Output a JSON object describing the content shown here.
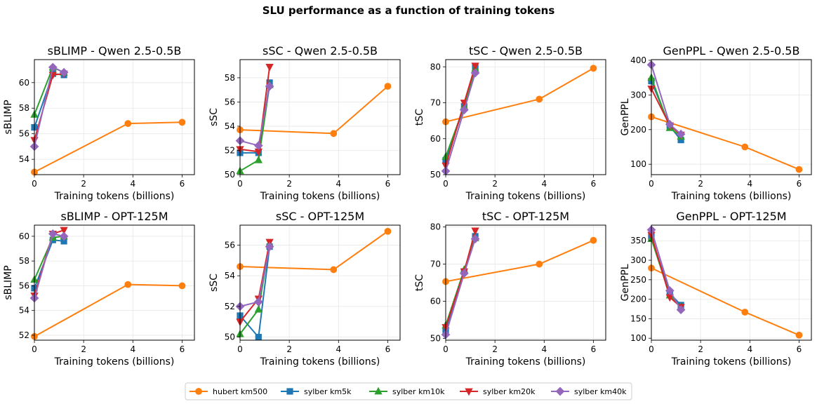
{
  "suptitle": "SLU performance as a function of training tokens",
  "colors": {
    "hubert km500": "#ff7f0e",
    "sylber km5k": "#1f77b4",
    "sylber km10k": "#2ca02c",
    "sylber km20k": "#d62728",
    "sylber km40k": "#9467bd"
  },
  "markers": {
    "hubert km500": "circle",
    "sylber km5k": "square",
    "sylber km10k": "triangle-up",
    "sylber km20k": "triangle-down",
    "sylber km40k": "diamond"
  },
  "legend": [
    "hubert km500",
    "sylber km5k",
    "sylber km10k",
    "sylber km20k",
    "sylber km40k"
  ],
  "chart_data": [
    {
      "type": "line",
      "title": "sBLIMP - Qwen 2.5-0.5B",
      "xlabel": "Training tokens (billions)",
      "ylabel": "sBLIMP",
      "xlim": [
        0,
        6.5
      ],
      "ylim": [
        52.8,
        61.8
      ],
      "xticks": [
        0,
        2,
        4,
        6
      ],
      "yticks": [
        54,
        56,
        58,
        60
      ],
      "series": [
        {
          "name": "hubert km500",
          "x": [
            0,
            3.8,
            6.0
          ],
          "y": [
            53.0,
            56.8,
            56.9
          ]
        },
        {
          "name": "sylber km5k",
          "x": [
            0,
            0.75,
            1.2
          ],
          "y": [
            56.5,
            60.7,
            60.6
          ]
        },
        {
          "name": "sylber km10k",
          "x": [
            0,
            0.75,
            1.2
          ],
          "y": [
            57.5,
            61.2,
            60.8
          ]
        },
        {
          "name": "sylber km20k",
          "x": [
            0,
            0.75,
            1.2
          ],
          "y": [
            55.5,
            60.6,
            60.7
          ]
        },
        {
          "name": "sylber km40k",
          "x": [
            0,
            0.75,
            1.2
          ],
          "y": [
            55.0,
            61.2,
            60.8
          ]
        }
      ]
    },
    {
      "type": "line",
      "title": "sSC - Qwen 2.5-0.5B",
      "xlabel": "Training tokens (billions)",
      "ylabel": "sSC",
      "xlim": [
        0,
        6.5
      ],
      "ylim": [
        50,
        59.5
      ],
      "xticks": [
        0,
        2,
        4,
        6
      ],
      "yticks": [
        50,
        52,
        54,
        56,
        58
      ],
      "series": [
        {
          "name": "hubert km500",
          "x": [
            0,
            3.8,
            6.0
          ],
          "y": [
            53.7,
            53.4,
            57.3
          ]
        },
        {
          "name": "sylber km5k",
          "x": [
            0,
            0.75,
            1.2
          ],
          "y": [
            51.8,
            51.8,
            57.6
          ]
        },
        {
          "name": "sylber km10k",
          "x": [
            0,
            0.75,
            1.2
          ],
          "y": [
            50.3,
            51.2,
            57.4
          ]
        },
        {
          "name": "sylber km20k",
          "x": [
            0,
            0.75,
            1.2
          ],
          "y": [
            52.1,
            51.9,
            58.9
          ]
        },
        {
          "name": "sylber km40k",
          "x": [
            0,
            0.75,
            1.2
          ],
          "y": [
            52.8,
            52.4,
            57.3
          ]
        }
      ]
    },
    {
      "type": "line",
      "title": "tSC - Qwen 2.5-0.5B",
      "xlabel": "Training tokens (billions)",
      "ylabel": "tSC",
      "xlim": [
        0,
        6.5
      ],
      "ylim": [
        50,
        82
      ],
      "xticks": [
        0,
        2,
        4,
        6
      ],
      "yticks": [
        50,
        60,
        70,
        80
      ],
      "series": [
        {
          "name": "hubert km500",
          "x": [
            0,
            3.8,
            6.0
          ],
          "y": [
            64.7,
            71.0,
            79.6
          ]
        },
        {
          "name": "sylber km5k",
          "x": [
            0,
            0.75,
            1.2
          ],
          "y": [
            54.0,
            69.0,
            80.0
          ]
        },
        {
          "name": "sylber km10k",
          "x": [
            0,
            0.75,
            1.2
          ],
          "y": [
            55.0,
            69.0,
            79.5
          ]
        },
        {
          "name": "sylber km20k",
          "x": [
            0,
            0.75,
            1.2
          ],
          "y": [
            52.5,
            70.0,
            80.3
          ]
        },
        {
          "name": "sylber km40k",
          "x": [
            0,
            0.75,
            1.2
          ],
          "y": [
            51.0,
            68.0,
            78.3
          ]
        }
      ]
    },
    {
      "type": "line",
      "title": "GenPPL - Qwen 2.5-0.5B",
      "xlabel": "Training tokens (billions)",
      "ylabel": "GenPPL",
      "xlim": [
        0,
        6.5
      ],
      "ylim": [
        70,
        402
      ],
      "xticks": [
        0,
        2,
        4,
        6
      ],
      "yticks": [
        100,
        200,
        300,
        400
      ],
      "series": [
        {
          "name": "hubert km500",
          "x": [
            0,
            3.8,
            6.0
          ],
          "y": [
            237,
            150,
            85
          ]
        },
        {
          "name": "sylber km5k",
          "x": [
            0,
            0.75,
            1.2
          ],
          "y": [
            340,
            210,
            170
          ]
        },
        {
          "name": "sylber km10k",
          "x": [
            0,
            0.75,
            1.2
          ],
          "y": [
            350,
            205,
            180
          ]
        },
        {
          "name": "sylber km20k",
          "x": [
            0,
            0.75,
            1.2
          ],
          "y": [
            318,
            212,
            185
          ]
        },
        {
          "name": "sylber km40k",
          "x": [
            0,
            0.75,
            1.2
          ],
          "y": [
            387,
            215,
            187
          ]
        }
      ]
    },
    {
      "type": "line",
      "title": "sBLIMP - OPT-125M",
      "xlabel": "Training tokens (billions)",
      "ylabel": "sBLIMP",
      "xlim": [
        0,
        6.5
      ],
      "ylim": [
        51.6,
        60.9
      ],
      "xticks": [
        0,
        2,
        4,
        6
      ],
      "yticks": [
        52,
        54,
        56,
        58,
        60
      ],
      "series": [
        {
          "name": "hubert km500",
          "x": [
            0,
            3.8,
            6.0
          ],
          "y": [
            51.9,
            56.1,
            56.0
          ]
        },
        {
          "name": "sylber km5k",
          "x": [
            0,
            0.75,
            1.2
          ],
          "y": [
            55.8,
            59.7,
            59.6
          ]
        },
        {
          "name": "sylber km10k",
          "x": [
            0,
            0.75,
            1.2
          ],
          "y": [
            56.5,
            59.9,
            60.0
          ]
        },
        {
          "name": "sylber km20k",
          "x": [
            0,
            0.75,
            1.2
          ],
          "y": [
            55.2,
            60.2,
            60.5
          ]
        },
        {
          "name": "sylber km40k",
          "x": [
            0,
            0.75,
            1.2
          ],
          "y": [
            55.0,
            60.2,
            60.0
          ]
        }
      ]
    },
    {
      "type": "line",
      "title": "sSC - OPT-125M",
      "xlabel": "Training tokens (billions)",
      "ylabel": "sSC",
      "xlim": [
        0,
        6.5
      ],
      "ylim": [
        49.8,
        57.3
      ],
      "xticks": [
        0,
        2,
        4,
        6
      ],
      "yticks": [
        50,
        52,
        54,
        56
      ],
      "series": [
        {
          "name": "hubert km500",
          "x": [
            0,
            3.8,
            6.0
          ],
          "y": [
            54.6,
            54.4,
            56.9
          ]
        },
        {
          "name": "sylber km5k",
          "x": [
            0,
            0.75,
            1.2
          ],
          "y": [
            51.4,
            50.0,
            55.9
          ]
        },
        {
          "name": "sylber km10k",
          "x": [
            0,
            0.75,
            1.2
          ],
          "y": [
            50.2,
            51.8,
            56.1
          ]
        },
        {
          "name": "sylber km20k",
          "x": [
            0,
            0.75,
            1.2
          ],
          "y": [
            51.0,
            52.5,
            56.2
          ]
        },
        {
          "name": "sylber km40k",
          "x": [
            0,
            0.75,
            1.2
          ],
          "y": [
            52.0,
            52.3,
            55.9
          ]
        }
      ]
    },
    {
      "type": "line",
      "title": "tSC - OPT-125M",
      "xlabel": "Training tokens (billions)",
      "ylabel": "tSC",
      "xlim": [
        0,
        6.5
      ],
      "ylim": [
        49.5,
        80.5
      ],
      "xticks": [
        0,
        2,
        4,
        6
      ],
      "yticks": [
        50,
        60,
        70,
        80
      ],
      "series": [
        {
          "name": "hubert km500",
          "x": [
            0,
            3.8,
            6.0
          ],
          "y": [
            65.3,
            70.0,
            76.4
          ]
        },
        {
          "name": "sylber km5k",
          "x": [
            0,
            0.75,
            1.2
          ],
          "y": [
            52.0,
            68.0,
            77.5
          ]
        },
        {
          "name": "sylber km10k",
          "x": [
            0,
            0.75,
            1.2
          ],
          "y": [
            53.5,
            68.5,
            77.0
          ]
        },
        {
          "name": "sylber km20k",
          "x": [
            0,
            0.75,
            1.2
          ],
          "y": [
            53.0,
            68.0,
            79.0
          ]
        },
        {
          "name": "sylber km40k",
          "x": [
            0,
            0.75,
            1.2
          ],
          "y": [
            51.0,
            67.5,
            76.8
          ]
        }
      ]
    },
    {
      "type": "line",
      "title": "GenPPL - OPT-125M",
      "xlabel": "Training tokens (billions)",
      "ylabel": "GenPPL",
      "xlim": [
        0,
        6.5
      ],
      "ylim": [
        95,
        390
      ],
      "xticks": [
        0,
        2,
        4,
        6
      ],
      "yticks": [
        100,
        150,
        200,
        250,
        300,
        350
      ],
      "series": [
        {
          "name": "hubert km500",
          "x": [
            0,
            3.8,
            6.0
          ],
          "y": [
            280,
            167,
            108
          ]
        },
        {
          "name": "sylber km5k",
          "x": [
            0,
            0.75,
            1.2
          ],
          "y": [
            360,
            215,
            185
          ]
        },
        {
          "name": "sylber km10k",
          "x": [
            0,
            0.75,
            1.2
          ],
          "y": [
            355,
            210,
            180
          ]
        },
        {
          "name": "sylber km20k",
          "x": [
            0,
            0.75,
            1.2
          ],
          "y": [
            365,
            205,
            180
          ]
        },
        {
          "name": "sylber km40k",
          "x": [
            0,
            0.75,
            1.2
          ],
          "y": [
            378,
            222,
            173
          ]
        }
      ]
    }
  ]
}
